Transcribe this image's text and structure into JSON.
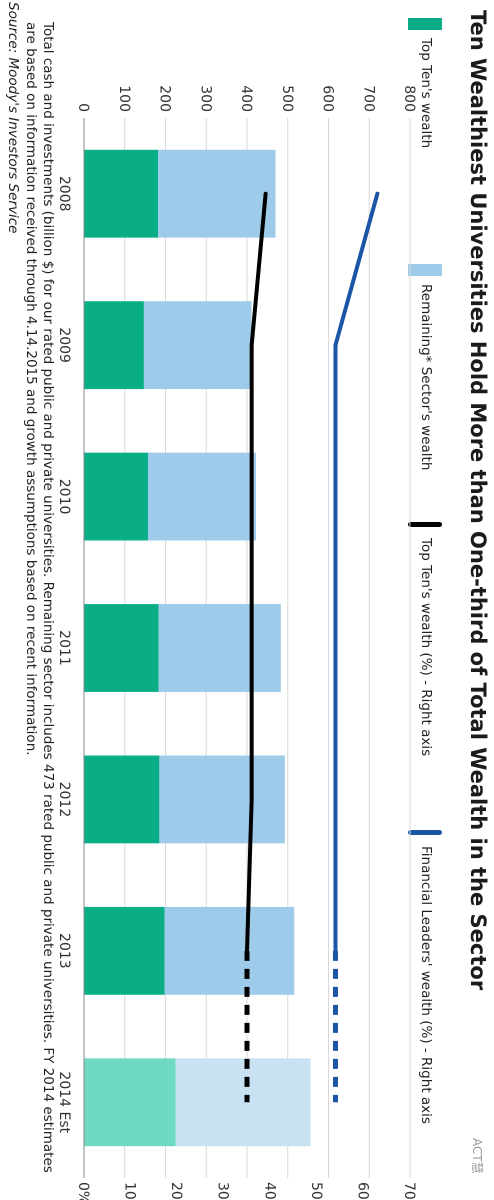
{
  "page": {
    "title": "Ten Wealthiest Universities Hold More than One-third of Total Wealth in the Sector",
    "footnote": "Total cash and investments (billion $) for our rated public and private universities. Remaining sector includes 473 rated public and private universities. FY 2014 estimates are based on information received through 4.14.2015 and growth assumptions based on recent information.",
    "source": "Source: Moody's Investors Service",
    "watermark": "ACT慧"
  },
  "legend": [
    {
      "label": "Top Ten's wealth",
      "kind": "box",
      "color": "#0aae86"
    },
    {
      "label": "Remaining* Sector's wealth",
      "kind": "box",
      "color": "#9ecbea"
    },
    {
      "label": "Top Ten's wealth (%) - Right axis",
      "kind": "line",
      "color": "#000000"
    },
    {
      "label": "Financial Leaders' wealth (%) - Right axis",
      "kind": "line",
      "color": "#1c55a5"
    }
  ],
  "colors": {
    "top_ten": "#0aae86",
    "top_ten_est": "#6fd9c2",
    "remaining": "#9ecbea",
    "remaining_est": "#c9e2f3",
    "top_ten_pct": "#000000",
    "leaders_pct": "#1c55a5",
    "grid": "#d8d8d8"
  },
  "chart_data": {
    "type": "bar",
    "stacked": true,
    "categories": [
      "2008",
      "2009",
      "2010",
      "2011",
      "2012",
      "2013",
      "2014 Est"
    ],
    "estimated_categories": [
      "2014 Est"
    ],
    "series": [
      {
        "name": "Top Ten's wealth",
        "axis": "left",
        "values": [
          182,
          147,
          157,
          183,
          185,
          198,
          225
        ]
      },
      {
        "name": "Remaining* Sector's wealth",
        "axis": "left",
        "values": [
          288,
          264,
          265,
          300,
          308,
          318,
          331
        ]
      },
      {
        "name": "Top Ten's wealth (%) - Right axis",
        "axis": "right",
        "type": "line",
        "values": [
          39,
          36,
          36,
          36,
          36,
          35,
          35
        ],
        "dashed_from": "2013"
      },
      {
        "name": "Financial Leaders' wealth (%) - Right axis",
        "axis": "right",
        "type": "line",
        "values": [
          63,
          54,
          54,
          54,
          54,
          54,
          54
        ],
        "dashed_from": "2013"
      }
    ],
    "left_axis": {
      "ylim": [
        0,
        800
      ],
      "ticks": [
        "0",
        "100",
        "200",
        "300",
        "400",
        "500",
        "600",
        "700",
        "800"
      ]
    },
    "right_axis": {
      "ylim": [
        0,
        70
      ],
      "ticks": [
        "0%",
        "10%",
        "20%",
        "30%",
        "40%",
        "50%",
        "60%",
        "70%"
      ]
    },
    "grid": true,
    "legend_position": "top"
  }
}
